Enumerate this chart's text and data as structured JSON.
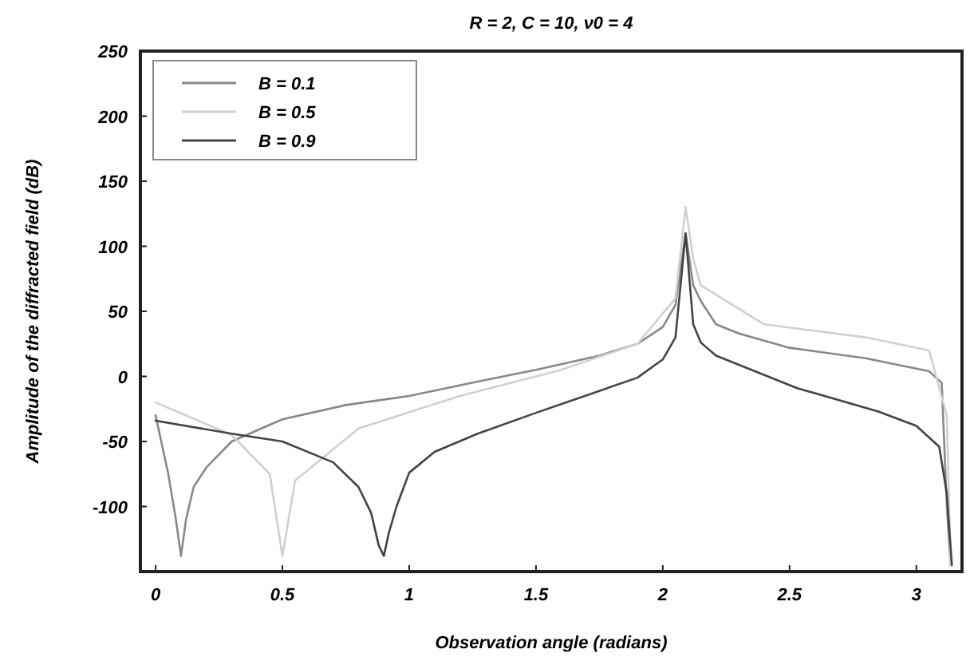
{
  "chart_data": {
    "type": "line",
    "title": "R = 2, C = 10, ν0 = 4",
    "xlabel": "Observation angle (radians)",
    "ylabel": "Amplitude of the diffracted field (dB)",
    "xlim": [
      -0.06,
      3.18
    ],
    "ylim": [
      -150,
      250
    ],
    "xticks": [
      0,
      0.5,
      1,
      1.5,
      2,
      2.5,
      3
    ],
    "yticks": [
      -100,
      -50,
      0,
      50,
      100,
      150,
      200,
      250
    ],
    "grid": false,
    "legend": "top left",
    "line_style": "solid",
    "series": [
      {
        "name": "B = 0.1",
        "color": "#888888",
        "x": [
          0,
          0.05,
          0.08,
          0.1,
          0.12,
          0.15,
          0.2,
          0.3,
          0.5,
          0.75,
          1.0,
          1.27,
          1.5,
          1.75,
          1.9,
          2.0,
          2.05,
          2.09,
          2.12,
          2.15,
          2.21,
          2.3,
          2.5,
          2.8,
          3.05,
          3.1,
          3.12,
          3.135
        ],
        "values": [
          -30,
          -75,
          -110,
          -138,
          -110,
          -85,
          -70,
          -50,
          -33,
          -22,
          -15,
          -4,
          5,
          16,
          25,
          38,
          55,
          110,
          70,
          58,
          40,
          33,
          22,
          14,
          4,
          -5,
          -100,
          -145
        ]
      },
      {
        "name": "B = 0.5",
        "color": "#d0d0d0",
        "x": [
          0,
          0.3,
          0.45,
          0.5,
          0.55,
          0.8,
          1.2,
          1.6,
          1.9,
          2.05,
          2.09,
          2.12,
          2.15,
          2.4,
          2.8,
          3.05,
          3.12,
          3.135
        ],
        "values": [
          -20,
          -45,
          -75,
          -138,
          -80,
          -40,
          -15,
          5,
          25,
          60,
          130,
          90,
          70,
          40,
          30,
          20,
          -30,
          -145
        ]
      },
      {
        "name": "B = 0.9",
        "color": "#444444",
        "x": [
          0,
          0.3,
          0.5,
          0.7,
          0.8,
          0.85,
          0.88,
          0.9,
          0.92,
          0.95,
          1.0,
          1.1,
          1.27,
          1.5,
          1.9,
          2.0,
          2.05,
          2.09,
          2.12,
          2.15,
          2.21,
          2.53,
          2.85,
          3.0,
          3.09,
          3.12,
          3.14
        ],
        "values": [
          -34,
          -44,
          -50,
          -66,
          -85,
          -105,
          -130,
          -138,
          -120,
          -100,
          -74,
          -58,
          -44,
          -28,
          -1,
          13,
          30,
          110,
          40,
          26,
          16,
          -9,
          -27,
          -38,
          -54,
          -90,
          -145
        ]
      }
    ]
  }
}
